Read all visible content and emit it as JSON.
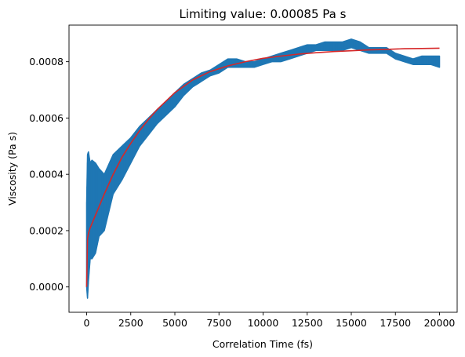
{
  "chart_data": {
    "type": "line",
    "title": "Limiting value: 0.00085 Pa s",
    "xlabel": "Correlation Time (fs)",
    "ylabel": "Viscosity (Pa s)",
    "xlim": [
      -1000,
      21000
    ],
    "ylim": [
      -9e-05,
      0.00093
    ],
    "xticks": [
      0,
      2500,
      5000,
      7500,
      10000,
      12500,
      15000,
      17500,
      20000
    ],
    "xtick_labels": [
      "0",
      "2500",
      "5000",
      "7500",
      "10000",
      "12500",
      "15000",
      "17500",
      "20000"
    ],
    "yticks": [
      0.0,
      0.0002,
      0.0004,
      0.0006,
      0.0008
    ],
    "ytick_labels": [
      "0.0000",
      "0.0002",
      "0.0004",
      "0.0006",
      "0.0008"
    ],
    "grid": false,
    "series": [
      {
        "kind": "band",
        "color": "#1f77b4",
        "x": [
          0,
          50,
          100,
          150,
          200,
          300,
          500,
          700,
          1000,
          1500,
          2000,
          2500,
          3000,
          3500,
          4000,
          4500,
          5000,
          5500,
          6000,
          6500,
          7000,
          7500,
          8000,
          8500,
          9000,
          9500,
          10000,
          10500,
          11000,
          11500,
          12000,
          12500,
          13000,
          13500,
          14000,
          14500,
          15000,
          15500,
          16000,
          16500,
          17000,
          17500,
          18000,
          18500,
          19000,
          19500,
          20000
        ],
        "upper": [
          0.0003,
          0.00047,
          0.00048,
          0.00046,
          0.00044,
          0.00045,
          0.00044,
          0.00042,
          0.0004,
          0.00047,
          0.0005,
          0.00053,
          0.00057,
          0.0006,
          0.00063,
          0.00066,
          0.00069,
          0.00072,
          0.00074,
          0.00076,
          0.00077,
          0.00079,
          0.00081,
          0.00081,
          0.0008,
          0.0008,
          0.00081,
          0.00082,
          0.00083,
          0.00084,
          0.00085,
          0.00086,
          0.00086,
          0.00087,
          0.00087,
          0.00087,
          0.00088,
          0.00087,
          0.00085,
          0.00085,
          0.00085,
          0.00083,
          0.00082,
          0.00081,
          0.00082,
          0.00082,
          0.00082
        ],
        "lower": [
          0.0,
          -4e-05,
          2e-05,
          6e-05,
          0.0001,
          0.0001,
          0.00012,
          0.00018,
          0.0002,
          0.00033,
          0.00038,
          0.00044,
          0.0005,
          0.00054,
          0.00058,
          0.00061,
          0.00064,
          0.00068,
          0.00071,
          0.00073,
          0.00075,
          0.00076,
          0.00078,
          0.00078,
          0.00078,
          0.00078,
          0.00079,
          0.0008,
          0.0008,
          0.00081,
          0.00082,
          0.00083,
          0.00084,
          0.00084,
          0.00084,
          0.00084,
          0.00085,
          0.00084,
          0.00083,
          0.00083,
          0.00083,
          0.00081,
          0.0008,
          0.00079,
          0.00079,
          0.00079,
          0.00078
        ]
      },
      {
        "kind": "line",
        "color": "#d62728",
        "x": [
          0,
          50,
          100,
          200,
          400,
          700,
          1000,
          1500,
          2000,
          2500,
          3000,
          3500,
          4000,
          5000,
          6000,
          7000,
          8000,
          9000,
          10000,
          11000,
          12000,
          13000,
          14000,
          15000,
          16000,
          17000,
          18000,
          19000,
          20000
        ],
        "y": [
          0.0,
          0.00017,
          0.00019,
          0.00021,
          0.00024,
          0.000285,
          0.00033,
          0.0004,
          0.00046,
          0.00051,
          0.000555,
          0.000595,
          0.00063,
          0.00069,
          0.000735,
          0.000765,
          0.000785,
          0.0008,
          0.000812,
          0.00082,
          0.000827,
          0.000832,
          0.000836,
          0.000839,
          0.000842,
          0.000844,
          0.000846,
          0.000847,
          0.000848
        ]
      }
    ]
  }
}
